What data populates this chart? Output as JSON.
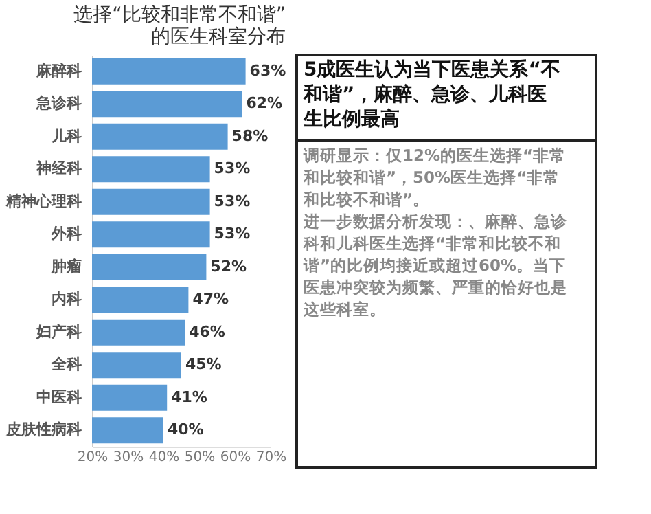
{
  "chart_data": [
    {
      "type": "bar",
      "orientation": "horizontal",
      "title": "选择“比较和非常不和谐”的医生科室分布",
      "categories": [
        "麻醉科",
        "急诊科",
        "儿科",
        "神经科",
        "精神心理科",
        "外科",
        "肿瘤",
        "内科",
        "妇产科",
        "全科",
        "中医科",
        "皮肤性病科"
      ],
      "values": [
        63,
        62,
        58,
        53,
        53,
        53,
        52,
        47,
        46,
        45,
        41,
        40
      ],
      "value_labels": [
        "63%",
        "62%",
        "58%",
        "53%",
        "53%",
        "53%",
        "52%",
        "47%",
        "46%",
        "45%",
        "41%",
        "40%"
      ],
      "color": "#5b9bd5",
      "xlim": [
        20,
        70
      ],
      "xticks": [
        {
          "value": 20,
          "label": "20%"
        },
        {
          "value": 30,
          "label": "30%"
        },
        {
          "value": 40,
          "label": "40%"
        },
        {
          "value": 50,
          "label": "50%"
        },
        {
          "value": 60,
          "label": "60%"
        },
        {
          "value": 70,
          "label": "70%"
        }
      ],
      "grid": false
    },
    {
      "type": "other",
      "title": "5成医生认为当下医患关系“不和谐”，麻醉、急诊、儿科医生比例最高",
      "annotations": [
        "调研显示：仅12%的医生选择“非常和比较和谐”，50%医生选择“非常和比较不和谐”。",
        "进一步数据分析发现：、麻醉、急诊科和儿科医生选择“非常和比较不和谐”的比例均接近或超过60%。当下医患冲突较为频繁、严重的恰好也是这些科室。"
      ]
    }
  ]
}
